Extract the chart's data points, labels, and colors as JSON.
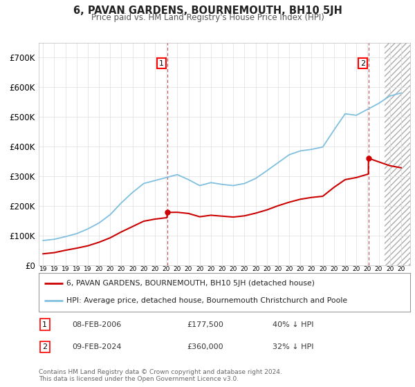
{
  "title": "6, PAVAN GARDENS, BOURNEMOUTH, BH10 5JH",
  "subtitle": "Price paid vs. HM Land Registry's House Price Index (HPI)",
  "ylim": [
    0,
    750000
  ],
  "yticks": [
    0,
    100000,
    200000,
    300000,
    400000,
    500000,
    600000,
    700000
  ],
  "ytick_labels": [
    "£0",
    "£100K",
    "£200K",
    "£300K",
    "£400K",
    "£500K",
    "£600K",
    "£700K"
  ],
  "hpi_color": "#7fbfdf",
  "price_color": "#cc0000",
  "transaction1_x": 2006.1,
  "transaction1_y": 177500,
  "transaction2_x": 2024.1,
  "transaction2_y": 360000,
  "transaction1": {
    "date": "08-FEB-2006",
    "price": "£177,500",
    "hpi": "40% ↓ HPI"
  },
  "transaction2": {
    "date": "09-FEB-2024",
    "price": "£360,000",
    "hpi": "32% ↓ HPI"
  },
  "legend_house_label": "6, PAVAN GARDENS, BOURNEMOUTH, BH10 5JH (detached house)",
  "legend_hpi_label": "HPI: Average price, detached house, Bournemouth Christchurch and Poole",
  "footnote": "Contains HM Land Registry data © Crown copyright and database right 2024.\nThis data is licensed under the Open Government Licence v3.0.",
  "grid_color": "#dddddd",
  "background_color": "#ffffff",
  "future_start": 2025.5,
  "xlim_left": 1994.6,
  "xlim_right": 2027.8
}
